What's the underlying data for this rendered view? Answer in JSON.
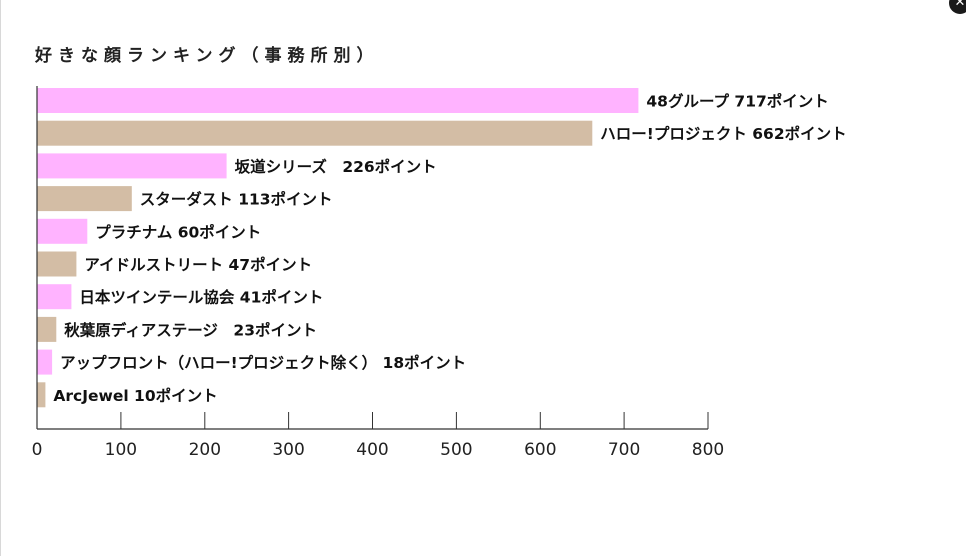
{
  "chart_data": {
    "type": "bar",
    "orientation": "horizontal",
    "title": "好きな顔ランキング（事務所別）",
    "categories": [
      "48グループ",
      "ハロー!プロジェクト",
      "坂道シリーズ",
      "スターダスト",
      "プラチナム",
      "アイドルストリート",
      "日本ツインテール協会",
      "秋葉原ディアステージ",
      "アップフロント（ハロー!プロジェクト除く）",
      "ArcJewel"
    ],
    "values": [
      717,
      662,
      226,
      113,
      60,
      47,
      41,
      23,
      18,
      10
    ],
    "labels": [
      "48グループ 717ポイント",
      "ハロー!プロジェクト 662ポイント",
      "坂道シリーズ　226ポイント",
      "スターダスト 113ポイント",
      "プラチナム 60ポイント",
      "アイドルストリート 47ポイント",
      "日本ツインテール協会 41ポイント",
      "秋葉原ディアステージ　23ポイント",
      "アップフロント（ハロー!プロジェクト除く） 18ポイント",
      "ArcJewel 10ポイント"
    ],
    "xlim": [
      0,
      800
    ],
    "xticks": [
      0,
      100,
      200,
      300,
      400,
      500,
      600,
      700,
      800
    ],
    "xlabel": "",
    "ylabel": "",
    "grid": false,
    "colors": [
      "#ffb3ff",
      "#d3bda5"
    ]
  },
  "ui": {
    "corner_icon": "close-icon"
  }
}
